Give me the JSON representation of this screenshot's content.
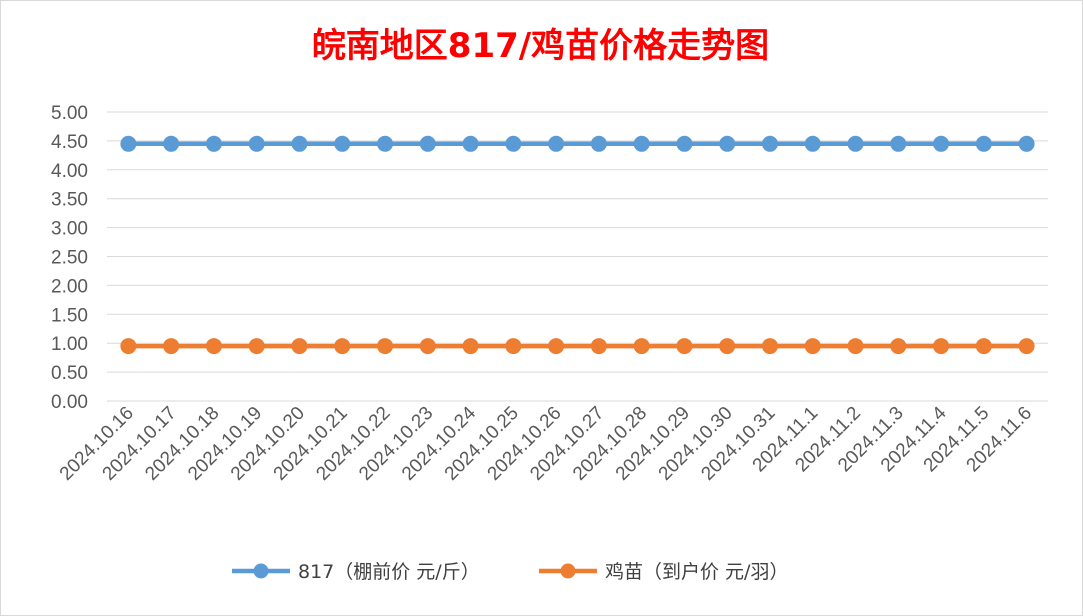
{
  "chart_data": {
    "type": "line",
    "title": "皖南地区817/鸡苗价格走势图",
    "categories": [
      "2024.10.16",
      "2024.10.17",
      "2024.10.18",
      "2024.10.19",
      "2024.10.20",
      "2024.10.21",
      "2024.10.22",
      "2024.10.23",
      "2024.10.24",
      "2024.10.25",
      "2024.10.26",
      "2024.10.27",
      "2024.10.28",
      "2024.10.29",
      "2024.10.30",
      "2024.10.31",
      "2024.11.1",
      "2024.11.2",
      "2024.11.3",
      "2024.11.4",
      "2024.11.5",
      "2024.11.6"
    ],
    "yticks": [
      "0.00",
      "0.50",
      "1.00",
      "1.50",
      "2.00",
      "2.50",
      "3.00",
      "3.50",
      "4.00",
      "4.50",
      "5.00"
    ],
    "ylim": [
      0,
      5
    ],
    "grid": true,
    "legend_position": "bottom",
    "series": [
      {
        "name": "817（棚前价 元/斤）",
        "color": "#5b9bd5",
        "values": [
          4.45,
          4.45,
          4.45,
          4.45,
          4.45,
          4.45,
          4.45,
          4.45,
          4.45,
          4.45,
          4.45,
          4.45,
          4.45,
          4.45,
          4.45,
          4.45,
          4.45,
          4.45,
          4.45,
          4.45,
          4.45,
          4.45
        ]
      },
      {
        "name": "鸡苗（到户价 元/羽）",
        "color": "#ed7d31",
        "values": [
          0.95,
          0.95,
          0.95,
          0.95,
          0.95,
          0.95,
          0.95,
          0.95,
          0.95,
          0.95,
          0.95,
          0.95,
          0.95,
          0.95,
          0.95,
          0.95,
          0.95,
          0.95,
          0.95,
          0.95,
          0.95,
          0.95
        ]
      }
    ]
  }
}
